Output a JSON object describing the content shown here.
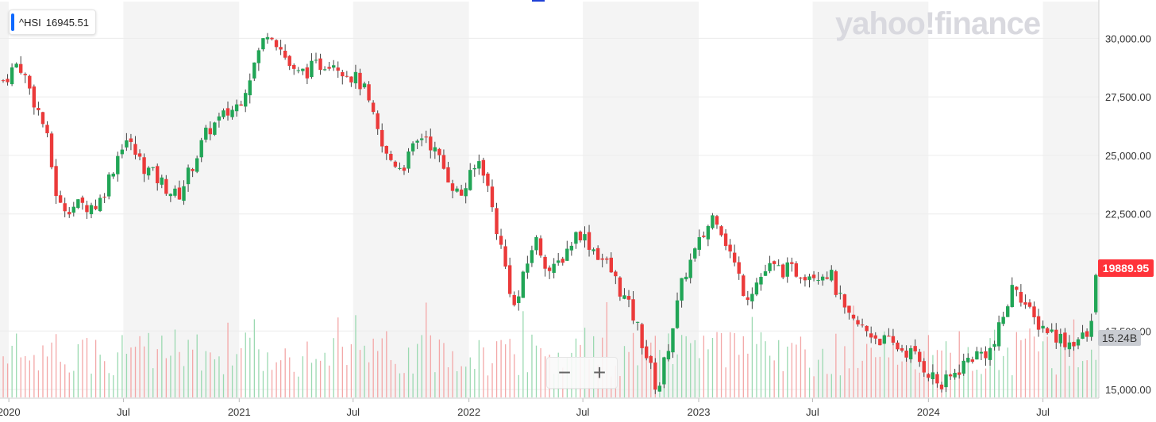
{
  "legend": {
    "symbol": "^HSI",
    "value": "16945.51",
    "accent": "#0f69ff"
  },
  "watermark": "yahoo!finance",
  "last_price": {
    "label": "19889.95",
    "color": "#ff333a"
  },
  "volume_label": {
    "label": "15.24B",
    "color": "#c9ccd2"
  },
  "zoom": {
    "minus": "−",
    "plus": "+"
  },
  "colors": {
    "up": "#21a556",
    "down": "#eb3a3a",
    "up_vol": "#9bd9b1",
    "down_vol": "#f3a7a7",
    "band": "#f4f4f4",
    "grid": "#ececec"
  },
  "chart_data": {
    "type": "candlestick",
    "title": "",
    "x_tick_labels": [
      "2020",
      "Jul",
      "2021",
      "Jul",
      "2022",
      "Jul",
      "2023",
      "Jul",
      "2024",
      "Jul"
    ],
    "y_tick_labels": [
      "30,000.00",
      "27,500.00",
      "25,000.00",
      "22,500.00",
      "17,500.00",
      "15,000.00"
    ],
    "ylim": [
      14900,
      31300
    ],
    "y_ticks": [
      30000,
      27500,
      25000,
      22500,
      17500,
      15000
    ],
    "interval": "weekly",
    "anchors": [
      [
        "2019-12-23",
        28200
      ],
      [
        "2020-01-17",
        29000
      ],
      [
        "2020-02-28",
        26100
      ],
      [
        "2020-03-20",
        22800
      ],
      [
        "2020-05-22",
        22900
      ],
      [
        "2020-06-12",
        24300
      ],
      [
        "2020-07-03",
        25800
      ],
      [
        "2020-07-31",
        24600
      ],
      [
        "2020-09-25",
        23200
      ],
      [
        "2020-11-13",
        26100
      ],
      [
        "2020-12-31",
        27200
      ],
      [
        "2021-02-17",
        30500
      ],
      [
        "2021-03-31",
        28400
      ],
      [
        "2021-05-28",
        29100
      ],
      [
        "2021-07-16",
        28000
      ],
      [
        "2021-08-20",
        25000
      ],
      [
        "2021-09-17",
        24500
      ],
      [
        "2021-10-22",
        26000
      ],
      [
        "2021-12-17",
        23200
      ],
      [
        "2022-01-20",
        24900
      ],
      [
        "2022-03-15",
        18400
      ],
      [
        "2022-04-15",
        21500
      ],
      [
        "2022-05-12",
        19900
      ],
      [
        "2022-06-24",
        21800
      ],
      [
        "2022-08-12",
        20200
      ],
      [
        "2022-09-23",
        17900
      ],
      [
        "2022-10-28",
        14900
      ],
      [
        "2022-12-09",
        19900
      ],
      [
        "2023-01-27",
        22600
      ],
      [
        "2023-03-17",
        19000
      ],
      [
        "2023-04-21",
        20200
      ],
      [
        "2023-06-16",
        20000
      ],
      [
        "2023-07-28",
        20000
      ],
      [
        "2023-08-25",
        18000
      ],
      [
        "2023-10-20",
        17100
      ],
      [
        "2023-12-08",
        16500
      ],
      [
        "2024-01-22",
        15100
      ],
      [
        "2024-03-08",
        16400
      ],
      [
        "2024-04-12",
        16700
      ],
      [
        "2024-05-17",
        19600
      ],
      [
        "2024-06-14",
        18000
      ],
      [
        "2024-08-09",
        17000
      ],
      [
        "2024-09-13",
        17300
      ],
      [
        "2024-09-20",
        18300
      ],
      [
        "2024-09-24",
        19890
      ]
    ],
    "candles": [],
    "volume": {
      "unit": "B",
      "last": 15.24
    }
  }
}
